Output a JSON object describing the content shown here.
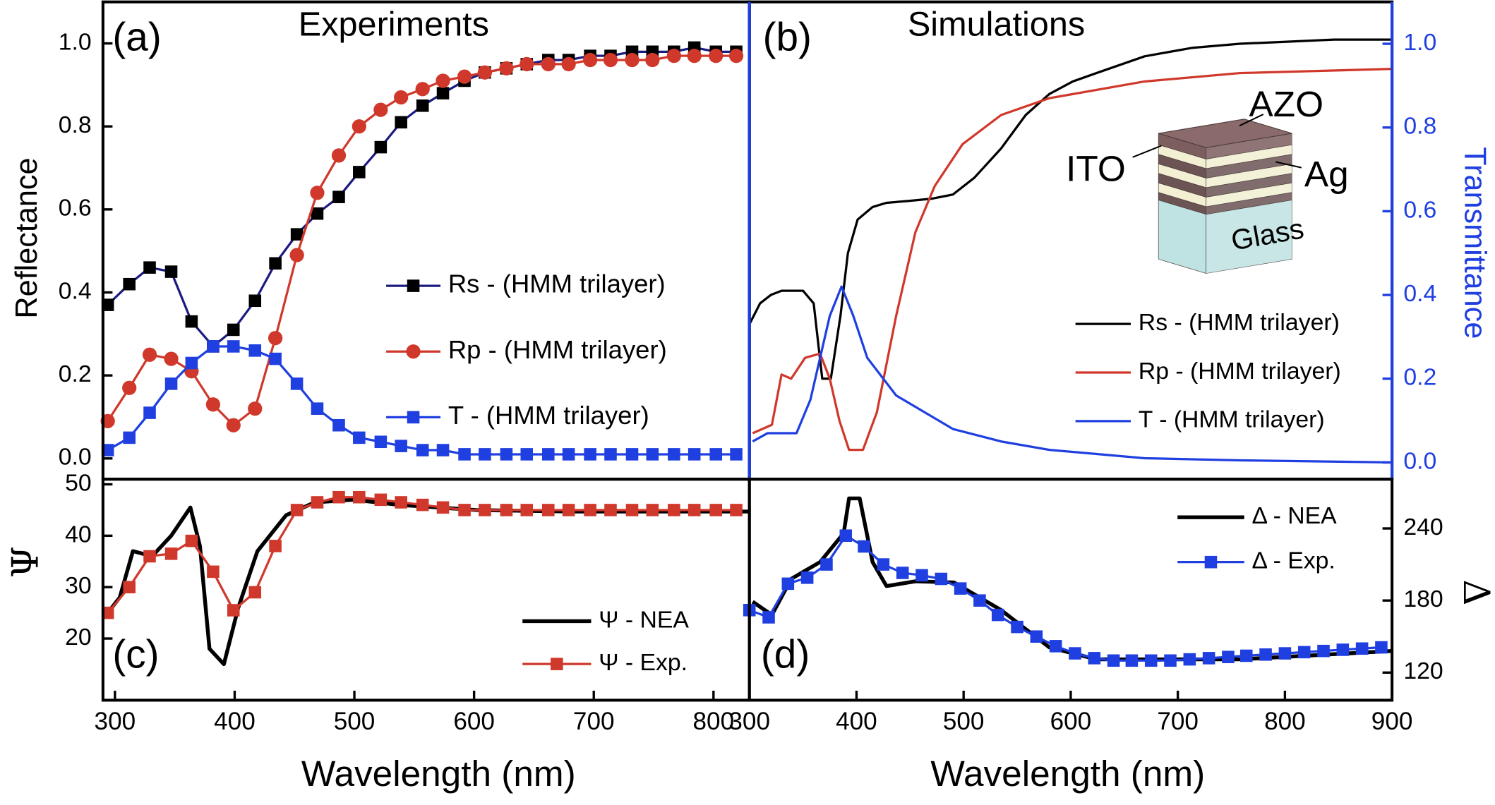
{
  "chart_data": [
    {
      "type": "line",
      "panel_label": "(a)",
      "title": "Experiments",
      "y_label": "Reflectance",
      "y_axis": "left",
      "legend": "center right",
      "xlim": [
        290,
        830
      ],
      "ylim": [
        -0.05,
        1.1
      ],
      "yticks": [
        {
          "value": 0,
          "label": "0.0"
        },
        0.2,
        0.4,
        0.6,
        0.8,
        {
          "value": 1,
          "label": "1.0"
        }
      ],
      "series": [
        {
          "name": "Rs - (HMM trilayer)",
          "color": "#1b1b80",
          "marker_color": "#000000",
          "marker": "square",
          "x": [
            294,
            312,
            329,
            347,
            364,
            382,
            399,
            417,
            434,
            452,
            469,
            487,
            504,
            522,
            539,
            557,
            574,
            592,
            609,
            627,
            644,
            662,
            679,
            697,
            714,
            732,
            749,
            767,
            784,
            802,
            819
          ],
          "values": [
            0.37,
            0.42,
            0.46,
            0.45,
            0.33,
            0.27,
            0.31,
            0.38,
            0.47,
            0.54,
            0.59,
            0.63,
            0.69,
            0.75,
            0.81,
            0.85,
            0.88,
            0.91,
            0.93,
            0.94,
            0.95,
            0.96,
            0.96,
            0.97,
            0.97,
            0.98,
            0.98,
            0.98,
            0.99,
            0.98,
            0.98
          ]
        },
        {
          "name": "Rp - (HMM trilayer)",
          "color": "#d0382b",
          "marker_color": "#d0382b",
          "marker": "circle",
          "x": [
            294,
            312,
            329,
            347,
            364,
            382,
            399,
            417,
            434,
            452,
            469,
            487,
            504,
            522,
            539,
            557,
            574,
            592,
            609,
            627,
            644,
            662,
            679,
            697,
            714,
            732,
            749,
            767,
            784,
            802,
            819
          ],
          "values": [
            0.09,
            0.17,
            0.25,
            0.24,
            0.21,
            0.13,
            0.08,
            0.12,
            0.29,
            0.49,
            0.64,
            0.73,
            0.8,
            0.84,
            0.87,
            0.89,
            0.91,
            0.92,
            0.93,
            0.94,
            0.95,
            0.95,
            0.95,
            0.96,
            0.96,
            0.96,
            0.96,
            0.97,
            0.97,
            0.97,
            0.97
          ]
        },
        {
          "name": "T - (HMM trilayer)",
          "color": "#1f3fe0",
          "marker_color": "#1f3fe0",
          "marker": "square",
          "x": [
            294,
            312,
            329,
            347,
            364,
            382,
            399,
            417,
            434,
            452,
            469,
            487,
            504,
            522,
            539,
            557,
            574,
            592,
            609,
            627,
            644,
            662,
            679,
            697,
            714,
            732,
            749,
            767,
            784,
            802,
            819
          ],
          "values": [
            0.02,
            0.05,
            0.11,
            0.18,
            0.23,
            0.27,
            0.27,
            0.26,
            0.24,
            0.18,
            0.12,
            0.08,
            0.05,
            0.04,
            0.03,
            0.02,
            0.02,
            0.01,
            0.01,
            0.01,
            0.01,
            0.01,
            0.01,
            0.01,
            0.01,
            0.01,
            0.01,
            0.01,
            0.01,
            0.01,
            0.01
          ]
        }
      ]
    },
    {
      "type": "line",
      "panel_label": "(b)",
      "title": "Simulations",
      "y_label": "Transmittance",
      "y_axis": "right",
      "axis_color": "#1f3fe0",
      "legend": "lower right",
      "inset_labels": [
        "AZO",
        "ITO",
        "Ag",
        "Glass"
      ],
      "xlim": [
        300,
        900
      ],
      "ylim": [
        -0.04,
        1.1
      ],
      "yticks": [
        {
          "value": 0,
          "label": "0.0"
        },
        0.2,
        0.4,
        0.6,
        0.8,
        {
          "value": 1,
          "label": "1.0"
        }
      ],
      "series": [
        {
          "name": "Rs - (HMM trilayer)",
          "color": "#000000",
          "marker": null,
          "x": [
            300,
            310,
            320,
            330,
            340,
            350,
            360,
            368,
            376,
            385,
            392,
            401,
            415,
            428,
            450,
            470,
            490,
            510,
            535,
            558,
            580,
            602,
            624,
            669,
            713,
            758,
            802,
            846,
            900
          ],
          "values": [
            0.33,
            0.38,
            0.4,
            0.41,
            0.41,
            0.41,
            0.38,
            0.2,
            0.2,
            0.35,
            0.5,
            0.58,
            0.61,
            0.62,
            0.625,
            0.63,
            0.64,
            0.68,
            0.75,
            0.83,
            0.88,
            0.91,
            0.93,
            0.97,
            0.99,
            1.0,
            1.005,
            1.01,
            1.01
          ]
        },
        {
          "name": "Rp - (HMM trilayer)",
          "color": "#d0382b",
          "marker": null,
          "x": [
            303,
            321,
            330,
            339,
            352,
            366,
            375,
            384,
            393,
            406,
            419,
            437,
            455,
            473,
            499,
            535,
            580,
            669,
            758,
            900
          ],
          "values": [
            0.07,
            0.09,
            0.21,
            0.2,
            0.25,
            0.26,
            0.2,
            0.1,
            0.03,
            0.03,
            0.12,
            0.35,
            0.55,
            0.66,
            0.76,
            0.83,
            0.87,
            0.91,
            0.93,
            0.94
          ]
        },
        {
          "name": "T  - (HMM trilayer)",
          "color": "#1f3fe0",
          "marker": null,
          "x": [
            303,
            317,
            344,
            357,
            375,
            386,
            397,
            410,
            437,
            490,
            535,
            580,
            669,
            758,
            900
          ],
          "values": [
            0.05,
            0.07,
            0.07,
            0.15,
            0.35,
            0.42,
            0.35,
            0.25,
            0.16,
            0.08,
            0.05,
            0.03,
            0.01,
            0.005,
            0
          ]
        }
      ]
    },
    {
      "type": "line",
      "panel_label": "(c)",
      "y_label": "Ψ",
      "y_axis": "left",
      "x_label": "Wavelength (nm)",
      "legend": "lower right",
      "xlim": [
        290,
        830
      ],
      "ylim": [
        8,
        51
      ],
      "xticks": [
        300,
        400,
        500,
        600,
        700,
        800
      ],
      "yticks": [
        20,
        30,
        40,
        50
      ],
      "series": [
        {
          "name": "Ψ - NEA",
          "color": "#000000",
          "marker": null,
          "width": 4,
          "x": [
            294,
            304,
            315,
            331,
            347,
            363,
            371,
            379,
            391,
            403,
            419,
            443,
            467,
            499,
            538,
            602,
            682,
            830
          ],
          "values": [
            25,
            28,
            37,
            36,
            40,
            45.5,
            38,
            18,
            15,
            26,
            37,
            44,
            46.5,
            47,
            46,
            45,
            44.7,
            44.7
          ]
        },
        {
          "name": "Ψ - Exp.",
          "color": "#d0382b",
          "marker_color": "#d0382b",
          "marker": "square",
          "x": [
            294,
            312,
            329,
            347,
            364,
            382,
            399,
            417,
            434,
            452,
            469,
            487,
            504,
            522,
            539,
            557,
            574,
            592,
            609,
            627,
            644,
            662,
            679,
            697,
            714,
            732,
            749,
            767,
            784,
            802,
            819
          ],
          "values": [
            25,
            30,
            36,
            36.5,
            39,
            33,
            25.5,
            29,
            38,
            45,
            46.5,
            47.5,
            47.5,
            47,
            46.5,
            46,
            45.5,
            45,
            45,
            45,
            45,
            45,
            45,
            45,
            45,
            45,
            45,
            45,
            45,
            45,
            45
          ]
        }
      ]
    },
    {
      "type": "line",
      "panel_label": "(d)",
      "y_label": "Δ",
      "y_axis": "right",
      "x_label": "Wavelength (nm)",
      "legend": "upper right",
      "xlim": [
        300,
        900
      ],
      "ylim": [
        97,
        281
      ],
      "xticks": [
        300,
        400,
        500,
        600,
        700,
        800,
        900
      ],
      "yticks": [
        120,
        180,
        240
      ],
      "series": [
        {
          "name": "Δ - NEA",
          "color": "#000000",
          "marker": null,
          "width": 4,
          "x": [
            303,
            321,
            339,
            366,
            388,
            393,
            403,
            415,
            428,
            455,
            491,
            535,
            580,
            624,
            758,
            900
          ],
          "values": [
            179,
            168,
            198,
            212,
            236,
            265,
            265,
            212,
            192,
            196,
            195,
            172,
            141,
            131,
            131,
            138
          ]
        },
        {
          "name": "Δ - Exp.",
          "color": "#1f3fe0",
          "marker_color": "#1f3fe0",
          "marker": "square",
          "x": [
            300,
            318,
            336,
            354,
            372,
            390,
            407,
            425,
            443,
            461,
            479,
            497,
            515,
            532,
            550,
            568,
            586,
            604,
            622,
            640,
            657,
            675,
            693,
            711,
            729,
            747,
            764,
            782,
            800,
            818,
            836,
            854,
            872,
            890
          ],
          "values": [
            172,
            166,
            194,
            199,
            210,
            234,
            225,
            210,
            203,
            201,
            198,
            190,
            180,
            168,
            158,
            150,
            142,
            136,
            132,
            130,
            130,
            130,
            130,
            131,
            132,
            133,
            134,
            135,
            136,
            137,
            138,
            139,
            140,
            141
          ]
        }
      ]
    }
  ]
}
